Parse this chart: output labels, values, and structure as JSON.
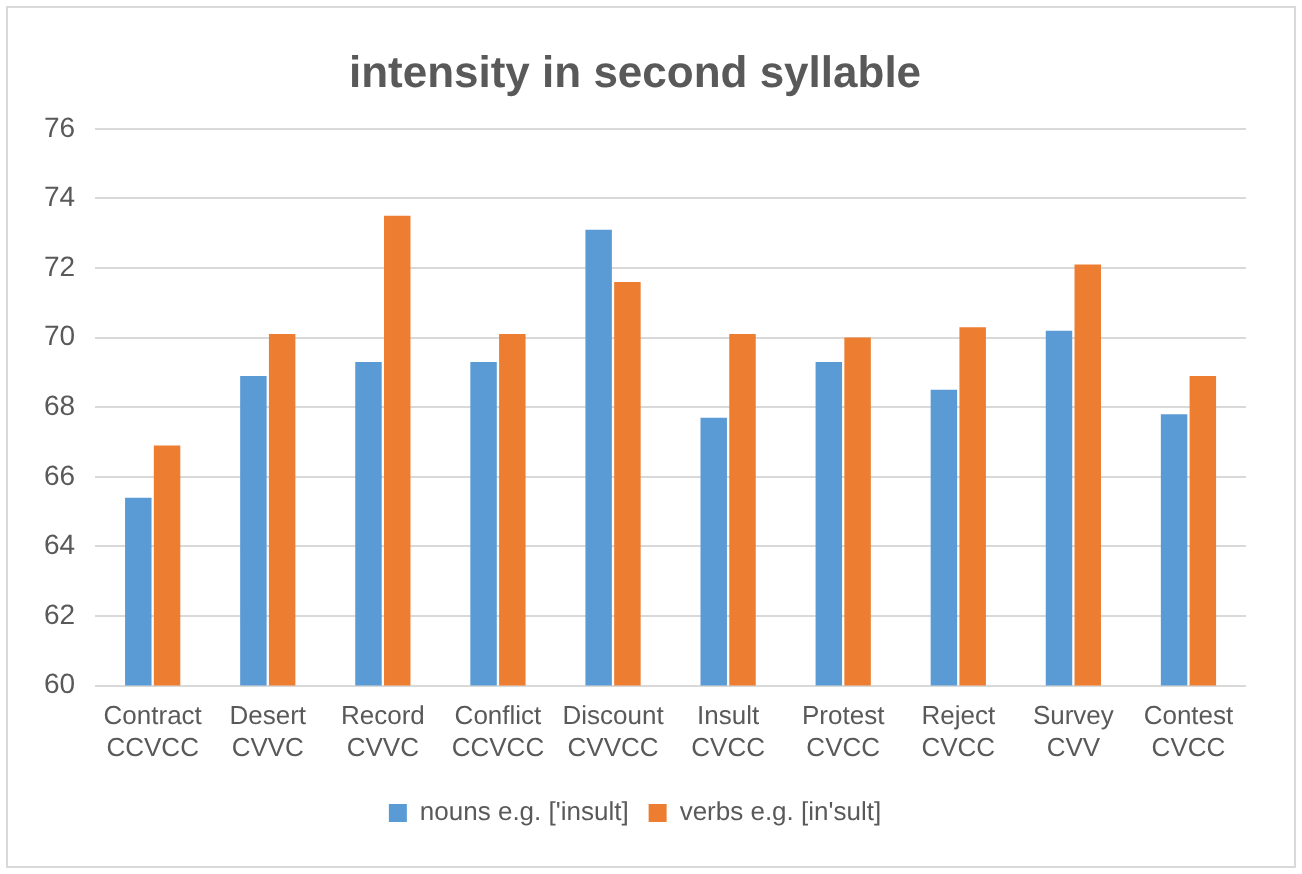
{
  "chart_data": {
    "type": "bar",
    "title": "intensity in second syllable",
    "categories": [
      "Contract\nCCVCC",
      "Desert\nCVVC",
      "Record\nCVVC",
      "Conflict\nCCVCC",
      "Discount\nCVVCC",
      "Insult\nCVCC",
      "Protest\nCVCC",
      "Reject\nCVCC",
      "Survey\nCVV",
      "Contest\nCVCC"
    ],
    "series": [
      {
        "name": "nouns e.g. ['insult]",
        "color": "#5b9bd5",
        "values": [
          65.4,
          68.9,
          69.3,
          69.3,
          73.1,
          67.7,
          69.3,
          68.5,
          70.2,
          67.8
        ]
      },
      {
        "name": "verbs e.g. [in'sult]",
        "color": "#ed7d31",
        "values": [
          66.9,
          70.1,
          73.5,
          70.1,
          71.6,
          70.1,
          70.0,
          70.3,
          72.1,
          68.9
        ]
      }
    ],
    "ylim": [
      60,
      76
    ],
    "yticks": [
      60,
      62,
      64,
      66,
      68,
      70,
      72,
      74,
      76
    ],
    "grid": "y",
    "legend": "bottom"
  }
}
